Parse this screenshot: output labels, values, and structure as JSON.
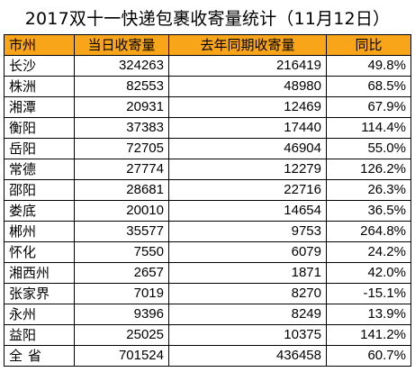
{
  "title": "2017双十一快递包裹收寄量统计（11月12日）",
  "headers": [
    "市州",
    "当日收寄量",
    "去年同期收寄量",
    "同比"
  ],
  "rows": [
    {
      "city": "长沙",
      "today": "324263",
      "last_year": "216419",
      "yoy": "49.8%"
    },
    {
      "city": "株洲",
      "today": "82553",
      "last_year": "48980",
      "yoy": "68.5%"
    },
    {
      "city": "湘潭",
      "today": "20931",
      "last_year": "12469",
      "yoy": "67.9%"
    },
    {
      "city": "衡阳",
      "today": "37383",
      "last_year": "17440",
      "yoy": "114.4%"
    },
    {
      "city": "岳阳",
      "today": "72705",
      "last_year": "46904",
      "yoy": "55.0%"
    },
    {
      "city": "常德",
      "today": "27774",
      "last_year": "12279",
      "yoy": "126.2%"
    },
    {
      "city": "邵阳",
      "today": "28681",
      "last_year": "22716",
      "yoy": "26.3%"
    },
    {
      "city": "娄底",
      "today": "20010",
      "last_year": "14654",
      "yoy": "36.5%"
    },
    {
      "city": "郴州",
      "today": "35577",
      "last_year": "9753",
      "yoy": "264.8%"
    },
    {
      "city": "怀化",
      "today": "7550",
      "last_year": "6079",
      "yoy": "24.2%"
    },
    {
      "city": "湘西州",
      "today": "2657",
      "last_year": "1871",
      "yoy": "42.0%"
    },
    {
      "city": "张家界",
      "today": "7019",
      "last_year": "8270",
      "yoy": "-15.1%"
    },
    {
      "city": "永州",
      "today": "9396",
      "last_year": "8249",
      "yoy": "13.9%"
    },
    {
      "city": "益阳",
      "today": "25025",
      "last_year": "10375",
      "yoy": "141.2%"
    }
  ],
  "total": {
    "city": "全省",
    "today": "701524",
    "last_year": "436458",
    "yoy": "60.7%"
  },
  "colors": {
    "header_bg": "#f9a51a",
    "border": "#000000"
  }
}
